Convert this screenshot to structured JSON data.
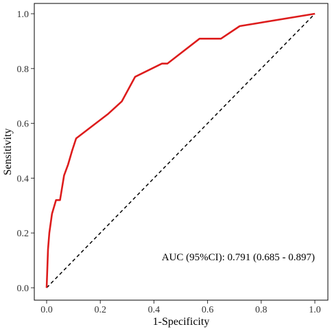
{
  "chart_data": {
    "type": "line",
    "title": "",
    "xlabel": "1-Specificity",
    "ylabel": "Sensitivity",
    "xlim": [
      0,
      1
    ],
    "ylim": [
      0,
      1
    ],
    "x_ticks": [
      "0.0",
      "0.2",
      "0.4",
      "0.6",
      "0.8",
      "1.0"
    ],
    "y_ticks": [
      "0.0",
      "0.2",
      "0.4",
      "0.6",
      "0.8",
      "1.0"
    ],
    "grid": false,
    "series": [
      {
        "color": "#dd1c1c",
        "x": [
          0,
          0.005,
          0.01,
          0.02,
          0.035,
          0.05,
          0.065,
          0.08,
          0.095,
          0.11,
          0.23,
          0.28,
          0.33,
          0.43,
          0.45,
          0.57,
          0.65,
          0.72,
          1.0
        ],
        "y": [
          0,
          0.14,
          0.2,
          0.27,
          0.32,
          0.32,
          0.41,
          0.45,
          0.5,
          0.545,
          0.635,
          0.68,
          0.77,
          0.818,
          0.818,
          0.909,
          0.909,
          0.955,
          1.0
        ]
      }
    ],
    "reference_line": {
      "x": [
        0,
        1
      ],
      "y": [
        0,
        1
      ],
      "style": "dashed",
      "color": "#000000"
    },
    "annotation": "AUC (95%CI): 0.791 (0.685 - 0.897)"
  }
}
